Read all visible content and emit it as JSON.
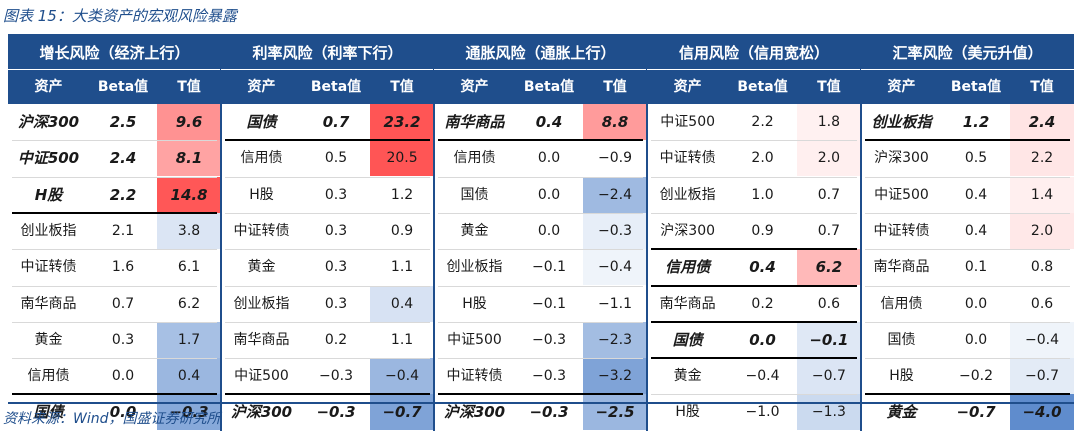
{
  "title": "图表 15：大类资产的宏观风险暴露",
  "source": "资料来源：Wind，国盛证券研究所",
  "column_headers": [
    "资产",
    "Beta值",
    "T值"
  ],
  "panels": [
    {
      "name": "增长风险（经济上行）",
      "rows": [
        {
          "asset": "沪深300",
          "beta": "2.5",
          "t": "9.6",
          "bold": true,
          "tv": 9.6
        },
        {
          "asset": "中证500",
          "beta": "2.4",
          "t": "8.1",
          "bold": true,
          "tv": 8.1
        },
        {
          "asset": "H股",
          "beta": "2.2",
          "t": "14.8",
          "bold": true,
          "tv": 14.8
        },
        {
          "asset": "创业板指",
          "beta": "2.1",
          "t": "3.8",
          "bold": false,
          "tv": -0.9
        },
        {
          "asset": "中证转债",
          "beta": "1.6",
          "t": "6.1",
          "bold": false,
          "tv": 0
        },
        {
          "asset": "南华商品",
          "beta": "0.7",
          "t": "6.2",
          "bold": false,
          "tv": 0
        },
        {
          "asset": "黄金",
          "beta": "0.3",
          "t": "1.7",
          "bold": false,
          "tv": -2.2
        },
        {
          "asset": "信用债",
          "beta": "0.0",
          "t": "0.4",
          "bold": false,
          "tv": -2.5
        },
        {
          "asset": "国债",
          "beta": "0.0",
          "t": "−0.3",
          "bold": true,
          "tv": -3.0
        }
      ],
      "bold_separators": [
        3,
        8
      ]
    },
    {
      "name": "利率风险（利率下行）",
      "rows": [
        {
          "asset": "国债",
          "beta": "0.7",
          "t": "23.2",
          "bold": true,
          "tv": 23.2
        },
        {
          "asset": "信用债",
          "beta": "0.5",
          "t": "20.5",
          "bold": false,
          "tv": 20.5
        },
        {
          "asset": "H股",
          "beta": "0.3",
          "t": "1.2",
          "bold": false,
          "tv": 0
        },
        {
          "asset": "中证转债",
          "beta": "0.3",
          "t": "0.9",
          "bold": false,
          "tv": 0
        },
        {
          "asset": "黄金",
          "beta": "0.3",
          "t": "1.1",
          "bold": false,
          "tv": 0
        },
        {
          "asset": "创业板指",
          "beta": "0.3",
          "t": "0.4",
          "bold": false,
          "tv": -1.0
        },
        {
          "asset": "南华商品",
          "beta": "0.2",
          "t": "1.1",
          "bold": false,
          "tv": 0
        },
        {
          "asset": "中证500",
          "beta": "−0.3",
          "t": "−0.4",
          "bold": false,
          "tv": -2.5
        },
        {
          "asset": "沪深300",
          "beta": "−0.3",
          "t": "−0.7",
          "bold": true,
          "tv": -3.2
        }
      ],
      "bold_separators": [
        1,
        8
      ]
    },
    {
      "name": "通胀风险（通胀上行）",
      "rows": [
        {
          "asset": "南华商品",
          "beta": "0.4",
          "t": "8.8",
          "bold": true,
          "tv": 8.8
        },
        {
          "asset": "信用债",
          "beta": "0.0",
          "t": "−0.9",
          "bold": false,
          "tv": 0
        },
        {
          "asset": "国债",
          "beta": "0.0",
          "t": "−2.4",
          "bold": false,
          "tv": -2.4
        },
        {
          "asset": "黄金",
          "beta": "0.0",
          "t": "−0.3",
          "bold": false,
          "tv": -0.6
        },
        {
          "asset": "创业板指",
          "beta": "−0.1",
          "t": "−0.4",
          "bold": false,
          "tv": -0.4
        },
        {
          "asset": "H股",
          "beta": "−0.1",
          "t": "−1.1",
          "bold": false,
          "tv": 0
        },
        {
          "asset": "中证500",
          "beta": "−0.3",
          "t": "−2.3",
          "bold": false,
          "tv": -2.3
        },
        {
          "asset": "中证转债",
          "beta": "−0.3",
          "t": "−3.2",
          "bold": false,
          "tv": -3.2
        },
        {
          "asset": "沪深300",
          "beta": "−0.3",
          "t": "−2.5",
          "bold": true,
          "tv": -2.5
        }
      ],
      "bold_separators": [
        1,
        8
      ]
    },
    {
      "name": "信用风险（信用宽松）",
      "rows": [
        {
          "asset": "中证500",
          "beta": "2.2",
          "t": "1.8",
          "bold": false,
          "tv": 1.2
        },
        {
          "asset": "中证转债",
          "beta": "2.0",
          "t": "2.0",
          "bold": false,
          "tv": 1.4
        },
        {
          "asset": "创业板指",
          "beta": "1.0",
          "t": "0.7",
          "bold": false,
          "tv": 0
        },
        {
          "asset": "沪深300",
          "beta": "0.9",
          "t": "0.7",
          "bold": false,
          "tv": 0
        },
        {
          "asset": "信用债",
          "beta": "0.4",
          "t": "6.2",
          "bold": true,
          "tv": 6.2
        },
        {
          "asset": "南华商品",
          "beta": "0.2",
          "t": "0.6",
          "bold": false,
          "tv": 0
        },
        {
          "asset": "国债",
          "beta": "0.0",
          "t": "−0.1",
          "bold": true,
          "tv": -0.8
        },
        {
          "asset": "黄金",
          "beta": "−0.4",
          "t": "−0.7",
          "bold": false,
          "tv": -0.9
        },
        {
          "asset": "H股",
          "beta": "−1.0",
          "t": "−1.3",
          "bold": false,
          "tv": -1.3
        }
      ],
      "bold_separators": [
        4,
        5,
        6,
        7
      ]
    },
    {
      "name": "汇率风险（美元升值）",
      "rows": [
        {
          "asset": "创业板指",
          "beta": "1.2",
          "t": "2.4",
          "bold": true,
          "tv": 2.4
        },
        {
          "asset": "沪深300",
          "beta": "0.5",
          "t": "2.2",
          "bold": false,
          "tv": 2.2
        },
        {
          "asset": "中证500",
          "beta": "0.4",
          "t": "1.4",
          "bold": false,
          "tv": 1.4
        },
        {
          "asset": "中证转债",
          "beta": "0.4",
          "t": "2.0",
          "bold": false,
          "tv": 2.0
        },
        {
          "asset": "南华商品",
          "beta": "0.1",
          "t": "0.8",
          "bold": false,
          "tv": 0
        },
        {
          "asset": "信用债",
          "beta": "0.0",
          "t": "0.6",
          "bold": false,
          "tv": 0
        },
        {
          "asset": "国债",
          "beta": "0.0",
          "t": "−0.4",
          "bold": false,
          "tv": -0.4
        },
        {
          "asset": "H股",
          "beta": "−0.2",
          "t": "−0.7",
          "bold": false,
          "tv": -0.7
        },
        {
          "asset": "黄金",
          "beta": "−0.7",
          "t": "−4.0",
          "bold": true,
          "tv": -4.0
        }
      ],
      "bold_separators": [
        1,
        8
      ]
    }
  ]
}
